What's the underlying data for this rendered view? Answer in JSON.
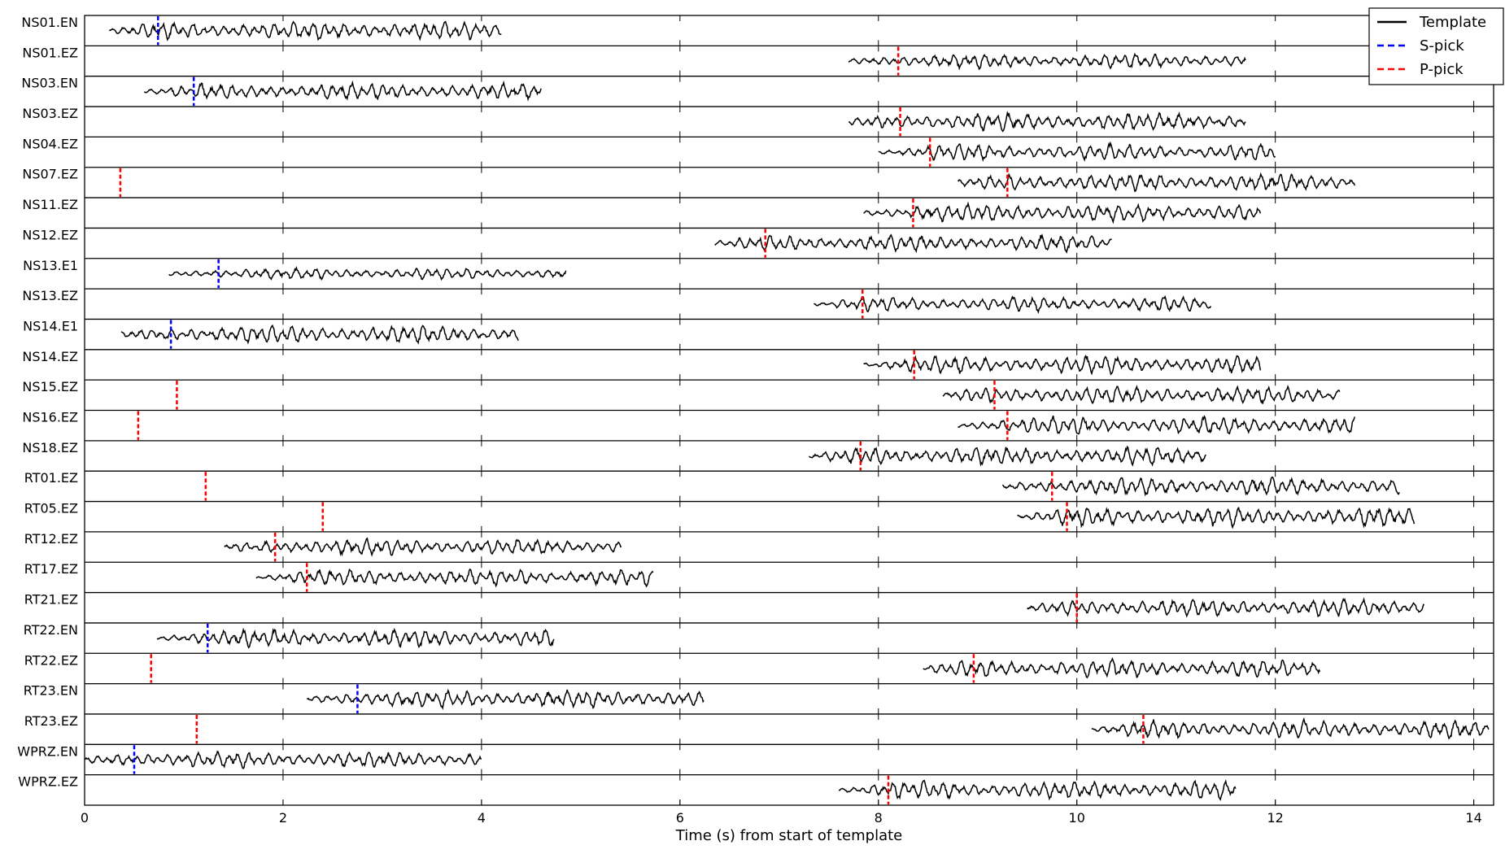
{
  "chart_data": {
    "type": "line",
    "xlabel": "Time (s) from start of template",
    "xlim": [
      0,
      14.2
    ],
    "xticks": [
      0,
      2,
      4,
      6,
      8,
      10,
      12,
      14
    ],
    "legend": {
      "placement": "top-right",
      "entries": [
        {
          "label": "Template",
          "style": "solid",
          "color": "#000000"
        },
        {
          "label": "S-pick",
          "style": "dashed",
          "color": "#0000ff"
        },
        {
          "label": "P-pick",
          "style": "dashed",
          "color": "#ff0000"
        }
      ]
    },
    "traces": [
      {
        "channel": "NS01.EN",
        "start": 0.25,
        "end": 4.2,
        "pick": 0.74,
        "pick_type": "S",
        "amp": 0.55,
        "seed": 11
      },
      {
        "channel": "NS01.EZ",
        "start": 7.7,
        "end": 11.7,
        "pick": 8.2,
        "pick_type": "P",
        "amp": 0.45,
        "seed": 12
      },
      {
        "channel": "NS03.EN",
        "start": 0.6,
        "end": 4.6,
        "pick": 1.1,
        "pick_type": "S",
        "amp": 0.5,
        "seed": 13
      },
      {
        "channel": "NS03.EZ",
        "start": 7.7,
        "end": 11.7,
        "pick": 8.22,
        "pick_type": "P",
        "amp": 0.55,
        "seed": 14
      },
      {
        "channel": "NS04.EZ",
        "start": 8.0,
        "end": 12.0,
        "pick": 8.52,
        "pick_type": "P",
        "amp": 0.5,
        "seed": 15
      },
      {
        "channel": "NS07.EZ",
        "start": 8.8,
        "end": 12.8,
        "pick": 9.3,
        "pick_type": "P",
        "amp": 0.55,
        "seed": 16
      },
      {
        "channel": "NS07.EZ",
        "start": null,
        "end": null,
        "pick": 0.36,
        "pick_type": "P",
        "amp": 0,
        "seed": 0
      },
      {
        "channel": "NS11.EZ",
        "start": 7.85,
        "end": 11.85,
        "pick": 8.35,
        "pick_type": "P",
        "amp": 0.55,
        "seed": 17
      },
      {
        "channel": "NS12.EZ",
        "start": 6.35,
        "end": 10.35,
        "pick": 6.86,
        "pick_type": "P",
        "amp": 0.5,
        "seed": 18
      },
      {
        "channel": "NS13.E1",
        "start": 0.85,
        "end": 4.85,
        "pick": 1.35,
        "pick_type": "S",
        "amp": 0.35,
        "seed": 19
      },
      {
        "channel": "NS13.EZ",
        "start": 7.35,
        "end": 11.35,
        "pick": 7.84,
        "pick_type": "P",
        "amp": 0.45,
        "seed": 20
      },
      {
        "channel": "NS14.E1",
        "start": 0.37,
        "end": 4.37,
        "pick": 0.87,
        "pick_type": "S",
        "amp": 0.55,
        "seed": 21
      },
      {
        "channel": "NS14.EZ",
        "start": 7.85,
        "end": 11.85,
        "pick": 8.36,
        "pick_type": "P",
        "amp": 0.55,
        "seed": 22
      },
      {
        "channel": "NS15.EZ",
        "start": 8.65,
        "end": 12.65,
        "pick": 9.17,
        "pick_type": "P",
        "amp": 0.55,
        "seed": 23
      },
      {
        "channel": "NS15.EZ",
        "start": null,
        "end": null,
        "pick": 0.93,
        "pick_type": "P",
        "amp": 0,
        "seed": 0
      },
      {
        "channel": "NS16.EZ",
        "start": 8.8,
        "end": 12.8,
        "pick": 9.3,
        "pick_type": "P",
        "amp": 0.55,
        "seed": 24
      },
      {
        "channel": "NS16.EZ",
        "start": null,
        "end": null,
        "pick": 0.54,
        "pick_type": "P",
        "amp": 0,
        "seed": 0
      },
      {
        "channel": "NS18.EZ",
        "start": 7.3,
        "end": 11.3,
        "pick": 7.82,
        "pick_type": "P",
        "amp": 0.55,
        "seed": 25
      },
      {
        "channel": "RT01.EZ",
        "start": 9.25,
        "end": 13.25,
        "pick": 9.75,
        "pick_type": "P",
        "amp": 0.55,
        "seed": 26
      },
      {
        "channel": "RT01.EZ",
        "start": null,
        "end": null,
        "pick": 1.22,
        "pick_type": "P",
        "amp": 0,
        "seed": 0
      },
      {
        "channel": "RT05.EZ",
        "start": 9.4,
        "end": 13.4,
        "pick": 9.9,
        "pick_type": "P",
        "amp": 0.6,
        "seed": 27
      },
      {
        "channel": "RT05.EZ",
        "start": null,
        "end": null,
        "pick": 2.4,
        "pick_type": "P",
        "amp": 0,
        "seed": 0
      },
      {
        "channel": "RT12.EZ",
        "start": 1.41,
        "end": 5.41,
        "pick": 1.92,
        "pick_type": "P",
        "amp": 0.5,
        "seed": 28
      },
      {
        "channel": "RT17.EZ",
        "start": 1.73,
        "end": 5.73,
        "pick": 2.24,
        "pick_type": "P",
        "amp": 0.5,
        "seed": 29
      },
      {
        "channel": "RT21.EZ",
        "start": 9.5,
        "end": 13.5,
        "pick": 10.0,
        "pick_type": "P",
        "amp": 0.55,
        "seed": 30
      },
      {
        "channel": "RT22.EN",
        "start": 0.73,
        "end": 4.73,
        "pick": 1.24,
        "pick_type": "S",
        "amp": 0.55,
        "seed": 31
      },
      {
        "channel": "RT22.EZ",
        "start": 8.45,
        "end": 12.45,
        "pick": 8.96,
        "pick_type": "P",
        "amp": 0.55,
        "seed": 32
      },
      {
        "channel": "RT22.EZ",
        "start": null,
        "end": null,
        "pick": 0.67,
        "pick_type": "P",
        "amp": 0,
        "seed": 0
      },
      {
        "channel": "RT23.EN",
        "start": 2.24,
        "end": 6.24,
        "pick": 2.75,
        "pick_type": "S",
        "amp": 0.55,
        "seed": 33
      },
      {
        "channel": "RT23.EZ",
        "start": 10.15,
        "end": 14.15,
        "pick": 10.67,
        "pick_type": "P",
        "amp": 0.55,
        "seed": 34
      },
      {
        "channel": "RT23.EZ",
        "start": null,
        "end": null,
        "pick": 1.13,
        "pick_type": "P",
        "amp": 0,
        "seed": 0
      },
      {
        "channel": "WPRZ.EN",
        "start": 0.0,
        "end": 4.0,
        "pick": 0.5,
        "pick_type": "S",
        "amp": 0.5,
        "seed": 35
      },
      {
        "channel": "WPRZ.EZ",
        "start": 7.6,
        "end": 11.6,
        "pick": 8.1,
        "pick_type": "P",
        "amp": 0.55,
        "seed": 36
      }
    ],
    "channels": [
      "NS01.EN",
      "NS01.EZ",
      "NS03.EN",
      "NS03.EZ",
      "NS04.EZ",
      "NS07.EZ",
      "NS11.EZ",
      "NS12.EZ",
      "NS13.E1",
      "NS13.EZ",
      "NS14.E1",
      "NS14.EZ",
      "NS15.EZ",
      "NS16.EZ",
      "NS18.EZ",
      "RT01.EZ",
      "RT05.EZ",
      "RT12.EZ",
      "RT17.EZ",
      "RT21.EZ",
      "RT22.EN",
      "RT22.EZ",
      "RT23.EN",
      "RT23.EZ",
      "WPRZ.EN",
      "WPRZ.EZ"
    ]
  }
}
